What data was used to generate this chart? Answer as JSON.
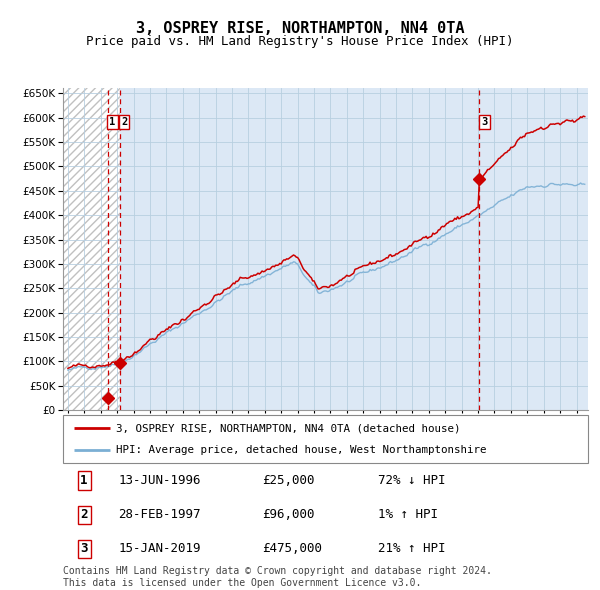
{
  "title": "3, OSPREY RISE, NORTHAMPTON, NN4 0TA",
  "subtitle": "Price paid vs. HM Land Registry's House Price Index (HPI)",
  "title_fontsize": 11,
  "subtitle_fontsize": 9,
  "ylim": [
    0,
    660000
  ],
  "yticks": [
    0,
    50000,
    100000,
    150000,
    200000,
    250000,
    300000,
    350000,
    400000,
    450000,
    500000,
    550000,
    600000,
    650000
  ],
  "xlim_start": 1993.7,
  "xlim_end": 2025.7,
  "hpi_color": "#7bafd4",
  "price_color": "#cc0000",
  "marker_color": "#cc0000",
  "vline_color": "#cc0000",
  "grid_color": "#b8cfe0",
  "bg_color": "#dce8f5",
  "sale1_date": 1996.45,
  "sale1_price": 25000,
  "sale2_date": 1997.16,
  "sale2_price": 96000,
  "sale3_date": 2019.04,
  "sale3_price": 475000,
  "legend_line1": "3, OSPREY RISE, NORTHAMPTON, NN4 0TA (detached house)",
  "legend_line2": "HPI: Average price, detached house, West Northamptonshire",
  "table_rows": [
    {
      "label": "1",
      "date": "13-JUN-1996",
      "price": "£25,000",
      "hpi": "72% ↓ HPI"
    },
    {
      "label": "2",
      "date": "28-FEB-1997",
      "price": "£96,000",
      "hpi": "1% ↑ HPI"
    },
    {
      "label": "3",
      "date": "15-JAN-2019",
      "price": "£475,000",
      "hpi": "21% ↑ HPI"
    }
  ],
  "footnote": "Contains HM Land Registry data © Crown copyright and database right 2024.\nThis data is licensed under the Open Government Licence v3.0."
}
